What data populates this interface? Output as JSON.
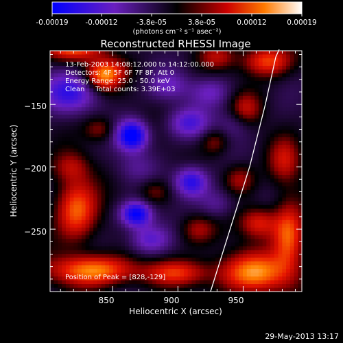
{
  "colorbar": {
    "ticks": [
      "-0.00019",
      "-0.00012",
      "-3.8e-05",
      "3.8e-05",
      "0.00012",
      "0.00019"
    ],
    "unit": "(photons cm⁻² s⁻¹ asec⁻²)"
  },
  "chart_data": {
    "type": "heatmap",
    "title": "Reconstructed RHESSI Image",
    "xlabel": "Heliocentric X (arcsec)",
    "ylabel": "Heliocentric Y (arcsec)",
    "xlim": [
      802,
      995
    ],
    "ylim": [
      -300,
      -107
    ],
    "x_ticks": [
      850,
      900,
      950
    ],
    "y_ticks": [
      -150,
      -200,
      -250
    ],
    "y_tick_labels": [
      "−150",
      "−200",
      "−250"
    ],
    "color_range": [
      -0.00019,
      0.00019
    ],
    "colormap": [
      "#0000ff",
      "#6a1fbf",
      "#000000",
      "#cc0000",
      "#ff7a00",
      "#ffffff"
    ],
    "annotations": [
      "13-Feb-2003 14:08:12.000 to 14:12:00.000",
      "Detectors: 4F 5F 6F 7F 8F, Att 0",
      "Energy Range: 25.0 - 50.0 keV",
      "Clean     Total counts: 3.39E+03"
    ],
    "peak_label": "Position of Peak = [828,-129]",
    "peak": [
      828,
      -129
    ],
    "limb_points": [
      [
        925,
        -300
      ],
      [
        940,
        -250
      ],
      [
        955,
        -200
      ],
      [
        967,
        -150
      ],
      [
        975,
        -112
      ]
    ],
    "blobs": [
      [
        815,
        -140,
        -0.6,
        24,
        16
      ],
      [
        845,
        -127,
        1.0,
        16,
        12
      ],
      [
        818,
        -105,
        0.7,
        24,
        10
      ],
      [
        968,
        -115,
        0.7,
        18,
        12
      ],
      [
        952,
        -155,
        0.45,
        12,
        14
      ],
      [
        930,
        -112,
        0.35,
        14,
        10
      ],
      [
        822,
        -235,
        0.75,
        16,
        24
      ],
      [
        835,
        -283,
        0.85,
        32,
        12
      ],
      [
        818,
        -200,
        0.35,
        14,
        12
      ],
      [
        898,
        -285,
        0.55,
        24,
        10
      ],
      [
        958,
        -285,
        0.85,
        28,
        16
      ],
      [
        985,
        -255,
        0.75,
        12,
        26
      ],
      [
        982,
        -195,
        0.45,
        12,
        18
      ],
      [
        962,
        -245,
        0.55,
        14,
        12
      ],
      [
        947,
        -210,
        0.4,
        12,
        12
      ],
      [
        915,
        -250,
        0.4,
        14,
        12
      ],
      [
        882,
        -220,
        0.3,
        12,
        10
      ],
      [
        840,
        -170,
        0.35,
        12,
        10
      ],
      [
        928,
        -180,
        0.3,
        10,
        10
      ],
      [
        868,
        -200,
        -0.2,
        16,
        12
      ],
      [
        865,
        -175,
        -1.0,
        12,
        12
      ],
      [
        868,
        -238,
        -0.9,
        12,
        10
      ],
      [
        910,
        -212,
        -0.75,
        13,
        12
      ],
      [
        908,
        -165,
        -0.5,
        16,
        12
      ],
      [
        878,
        -258,
        -0.5,
        16,
        12
      ],
      [
        925,
        -140,
        -0.35,
        16,
        12
      ],
      [
        893,
        -135,
        -0.35,
        16,
        12
      ],
      [
        945,
        -165,
        -0.3,
        14,
        12
      ],
      [
        930,
        -230,
        -0.3,
        14,
        12
      ],
      [
        855,
        -130,
        -0.25,
        12,
        10
      ]
    ]
  },
  "footer": {
    "datetime": "29-May-2013 13:17"
  }
}
